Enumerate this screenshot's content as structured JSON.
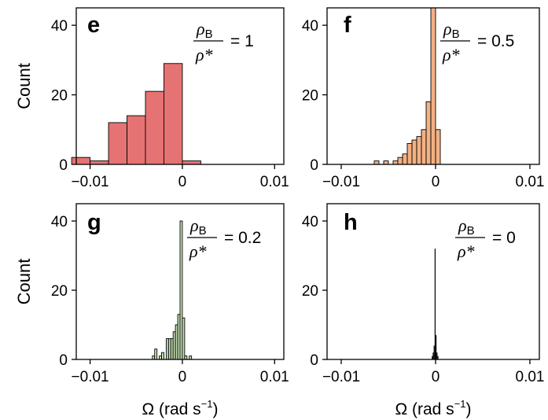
{
  "chart_data": [
    {
      "type": "bar",
      "panel": "e",
      "ratio_numerator": "ρ",
      "ratio_numerator_sub": "B",
      "ratio_denominator": "ρ*",
      "ratio_value": "= 1",
      "color": "#e57373",
      "bin_width": 0.002,
      "bins": [
        {
          "x": -0.011,
          "count": 2
        },
        {
          "x": -0.009,
          "count": 1
        },
        {
          "x": -0.007,
          "count": 12
        },
        {
          "x": -0.005,
          "count": 14
        },
        {
          "x": -0.003,
          "count": 21
        },
        {
          "x": -0.001,
          "count": 29
        },
        {
          "x": 0.001,
          "count": 1
        }
      ],
      "xlim": [
        -0.0115,
        0.011
      ],
      "ylim": [
        0,
        45
      ],
      "xticks": [
        -0.01,
        0,
        0.01
      ],
      "xtick_labels": [
        "−0.01",
        "0",
        "0.01"
      ],
      "yticks": [
        0,
        20,
        40
      ],
      "ytick_labels": [
        "0",
        "20",
        "40"
      ],
      "ylabel": "Count",
      "xlabel": ""
    },
    {
      "type": "bar",
      "panel": "f",
      "ratio_numerator": "ρ",
      "ratio_numerator_sub": "B",
      "ratio_denominator": "ρ*",
      "ratio_value": "= 0.5",
      "color": "#f4b183",
      "bin_width": 0.0005,
      "bins": [
        {
          "x": -0.00625,
          "count": 1
        },
        {
          "x": -0.00525,
          "count": 1
        },
        {
          "x": -0.00425,
          "count": 1
        },
        {
          "x": -0.00375,
          "count": 2
        },
        {
          "x": -0.00325,
          "count": 3
        },
        {
          "x": -0.00275,
          "count": 6
        },
        {
          "x": -0.00225,
          "count": 7
        },
        {
          "x": -0.00175,
          "count": 8
        },
        {
          "x": -0.00125,
          "count": 10
        },
        {
          "x": -0.00075,
          "count": 18
        },
        {
          "x": -0.00025,
          "count": 45
        },
        {
          "x": 0.00025,
          "count": 10
        }
      ],
      "xlim": [
        -0.0115,
        0.011
      ],
      "ylim": [
        0,
        45
      ],
      "xticks": [
        -0.01,
        0,
        0.01
      ],
      "xtick_labels": [
        "−0.01",
        "0",
        "0.01"
      ],
      "yticks": [
        0,
        20,
        40
      ],
      "ytick_labels": [
        "0",
        "20",
        "40"
      ],
      "ylabel": "",
      "xlabel": ""
    },
    {
      "type": "bar",
      "panel": "g",
      "ratio_numerator": "ρ",
      "ratio_numerator_sub": "B",
      "ratio_denominator": "ρ*",
      "ratio_value": "= 0.2",
      "color": "#c5e0b4",
      "bin_width": 0.00025,
      "bins": [
        {
          "x": -0.003125,
          "count": 1
        },
        {
          "x": -0.002875,
          "count": 3
        },
        {
          "x": -0.002375,
          "count": 1
        },
        {
          "x": -0.002125,
          "count": 2
        },
        {
          "x": -0.001625,
          "count": 6
        },
        {
          "x": -0.001375,
          "count": 6
        },
        {
          "x": -0.001125,
          "count": 6
        },
        {
          "x": -0.000875,
          "count": 8
        },
        {
          "x": -0.000625,
          "count": 10
        },
        {
          "x": -0.000375,
          "count": 13
        },
        {
          "x": -0.000125,
          "count": 40
        },
        {
          "x": 0.000125,
          "count": 12
        },
        {
          "x": 0.000375,
          "count": 1
        },
        {
          "x": 0.000875,
          "count": 1
        }
      ],
      "xlim": [
        -0.0115,
        0.011
      ],
      "ylim": [
        0,
        45
      ],
      "xticks": [
        -0.01,
        0,
        0.01
      ],
      "xtick_labels": [
        "−0.01",
        "0",
        "0.01"
      ],
      "yticks": [
        0,
        20,
        40
      ],
      "ytick_labels": [
        "0",
        "20",
        "40"
      ],
      "ylabel": "Count",
      "xlabel": "Ω (rad s"
    },
    {
      "type": "bar",
      "panel": "h",
      "ratio_numerator": "ρ",
      "ratio_numerator_sub": "B",
      "ratio_denominator": "ρ*",
      "ratio_value": "= 0",
      "color": "#000000",
      "bin_width": 0.0001,
      "bins": [
        {
          "x": -0.00035,
          "count": 1
        },
        {
          "x": -0.00025,
          "count": 2
        },
        {
          "x": -0.00015,
          "count": 4
        },
        {
          "x": -5e-05,
          "count": 32
        },
        {
          "x": 5e-05,
          "count": 7
        },
        {
          "x": 0.00015,
          "count": 2
        },
        {
          "x": 0.00025,
          "count": 1
        }
      ],
      "xlim": [
        -0.0115,
        0.011
      ],
      "ylim": [
        0,
        45
      ],
      "xticks": [
        -0.01,
        0,
        0.01
      ],
      "xtick_labels": [
        "−0.01",
        "0",
        "0.01"
      ],
      "yticks": [
        0,
        20,
        40
      ],
      "ytick_labels": [
        "0",
        "20",
        "40"
      ],
      "ylabel": "",
      "xlabel": "Ω (rad s"
    }
  ],
  "xlabel_superscript": "−1",
  "xlabel_close": ")"
}
